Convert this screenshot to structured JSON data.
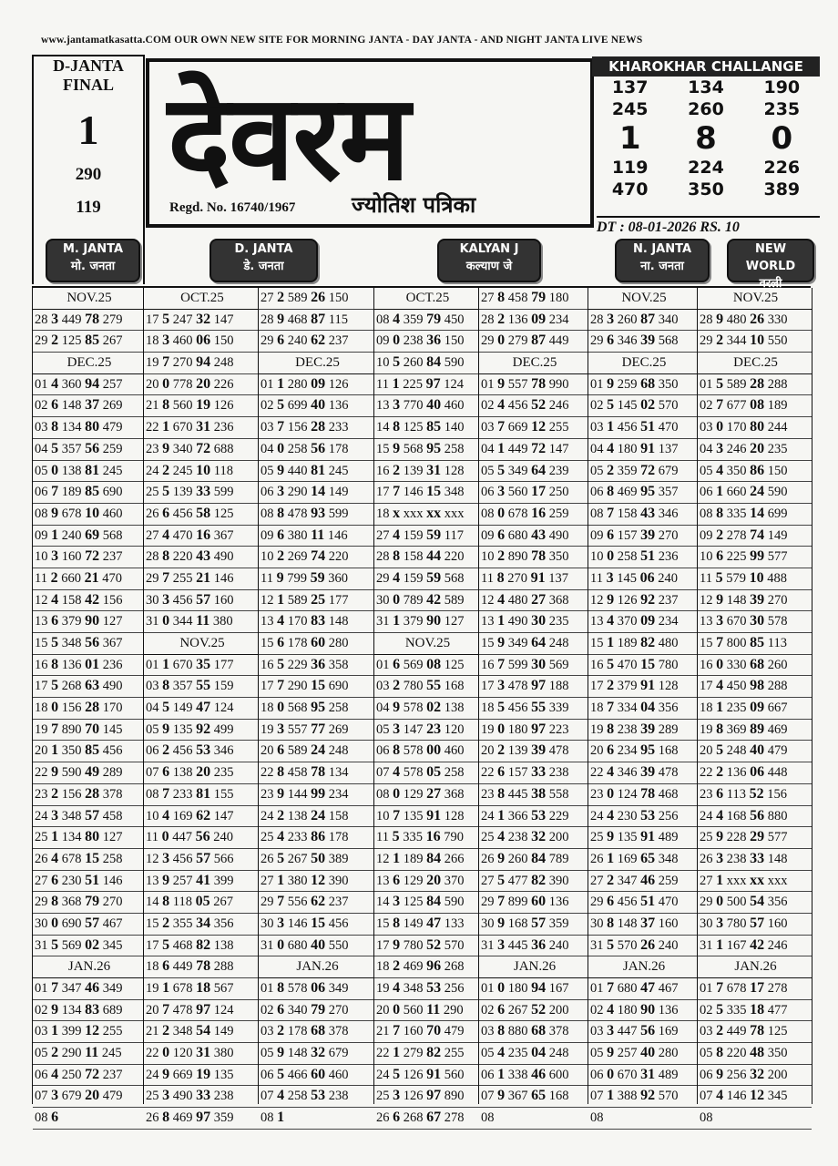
{
  "header": {
    "website": "www.jantamatkasatta.COM  OUR OWN NEW SITE FOR MORNING JANTA - DAY JANTA - AND NIGHT JANTA   LIVE NEWS"
  },
  "left_box": {
    "title": "D-JANTA",
    "subtitle": "FINAL",
    "digit": "1",
    "numbers": [
      "290",
      "119"
    ]
  },
  "masthead": {
    "title": "देवरम",
    "regd": "Regd. No. 16740/1967",
    "tagline": "ज्योतिश पत्रिका"
  },
  "challenge": {
    "title": "KHAROKHAR CHALLANGE",
    "rows": [
      [
        "137",
        "134",
        "190"
      ],
      [
        "245",
        "260",
        "235"
      ],
      [
        "1",
        "8",
        "0"
      ],
      [
        "119",
        "224",
        "226"
      ],
      [
        "470",
        "350",
        "389"
      ]
    ]
  },
  "date": "DT : 08-01-2026 RS. 10",
  "markets": [
    {
      "en": "M. JANTA",
      "hi": "मो. जनता"
    },
    {
      "en": "D. JANTA",
      "hi": "डे. जनता"
    },
    {
      "en": "KALYAN J",
      "hi": "कल्याण जे"
    },
    {
      "en": "N. JANTA",
      "hi": "ना. जनता"
    },
    {
      "en": "NEW WORLD",
      "hi": "वरली"
    }
  ],
  "columns": [
    [
      "NOV.25",
      "28 3 449 78 279",
      "29 2 125 85 267",
      "DEC.25",
      "01 4 360 94 257",
      "02 6 148 37 269",
      "03 8 134 80 479",
      "04 5 357 56 259",
      "05 0 138 81 245",
      "06 7 189 85 690",
      "08 9 678 10 460",
      "09 1 240 69 568",
      "10 3 160 72 237",
      "11 2 660 21 470",
      "12 4 158 42 156",
      "13 6 379 90 127",
      "15 5 348 56 367",
      "16 8 136 01 236",
      "17 5 268 63 490",
      "18 0 156 28 170",
      "19 7 890 70 145",
      "20 1 350 85 456",
      "22 9 590 49 289",
      "23 2 156 28 378",
      "24 3 348 57 458",
      "25 1 134 80 127",
      "26 4 678 15 258",
      "27 6 230 51 146",
      "29 8 368 79 270",
      "30 0 690 57 467",
      "31 5 569 02 345",
      "JAN.26",
      "01 7 347 46 349",
      "02 9 134 83 689",
      "03 1 399 12 255",
      "05 2 290 11 245",
      "06 4 250 72 237",
      "07 3 679 20 479",
      "08 6"
    ],
    [
      "OCT.25",
      "17 5 247 32 147",
      "18 3 460 06 150",
      "19 7 270 94 248",
      "20 0 778 20 226",
      "21 8 560 19 126",
      "22 1 670 31 236",
      "23 9 340 72 688",
      "24 2 245 10 118",
      "25 5 139 33 599",
      "26 6 456 58 125",
      "27 4 470 16 367",
      "28 8 220 43 490",
      "29 7 255 21 146",
      "30 3 456 57 160",
      "31 0 344 11 380",
      "NOV.25",
      "01 1 670 35 177",
      "03 8 357 55 159",
      "04 5 149 47 124",
      "05 9 135 92 499",
      "06 2 456 53 346",
      "07 6 138 20 235",
      "08 7 233 81 155",
      "10 4 169 62 147",
      "11 0 447 56 240",
      "12 3 456 57 566",
      "13 9 257 41 399",
      "14 8 118 05 267",
      "15 2 355 34 356",
      "17 5 468 82 138",
      "18 6 449 78 288",
      "19 1 678 18 567",
      "20 7 478 97 124",
      "21 2 348 54 149",
      "22 0 120 31 380",
      "24 9 669 19 135",
      "25 3 490 33 238",
      "26 8 469 97 359"
    ],
    [
      "27 2 589 26 150",
      "28 9 468 87 115",
      "29 6 240 62 237",
      "DEC.25",
      "01 1 280 09 126",
      "02 5 699 40 136",
      "03 7 156 28 233",
      "04 0 258 56 178",
      "05 9 440 81 245",
      "06 3 290 14 149",
      "08 8 478 93 599",
      "09 6 380 11 146",
      "10 2 269 74 220",
      "11 9 799 59 360",
      "12 1 589 25 177",
      "13 4 170 83 148",
      "15 6 178 60 280",
      "16 5 229 36 358",
      "17 7 290 15 690",
      "18 0 568 95 258",
      "19 3 557 77 269",
      "20 6 589 24 248",
      "22 8 458 78 134",
      "23 9 144 99 234",
      "24 2 138 24 158",
      "25 4 233 86 178",
      "26 5 267 50 389",
      "27 1 380 12 390",
      "29 7 556 62 237",
      "30 3 146 15 456",
      "31 0 680 40 550",
      "JAN.26",
      "01 8 578 06 349",
      "02 6 340 79 270",
      "03 2 178 68 378",
      "05 9 148 32 679",
      "06 5 466 60 460",
      "07 4 258 53 238",
      "08 1"
    ],
    [
      "OCT.25",
      "08 4 359 79 450",
      "09 0 238 36 150",
      "10 5 260 84 590",
      "11 1 225 97 124",
      "13 3 770 40 460",
      "14 8 125 85 140",
      "15 9 568 95 258",
      "16 2 139 31 128",
      "17 7 146 15 348",
      "18 x xxx xx xxx",
      "27 4 159 59 117",
      "28 8 158 44 220",
      "29 4 159 59 568",
      "30 0 789 42 589",
      "31 1 379 90 127",
      "NOV.25",
      "01 6 569 08 125",
      "03 2 780 55 168",
      "04 9 578 02 138",
      "05 3 147 23 120",
      "06 8 578 00 460",
      "07 4 578 05 258",
      "08 0 129 27 368",
      "10 7 135 91 128",
      "11 5 335 16 790",
      "12 1 189 84 266",
      "13 6 129 20 370",
      "14 3 125 84 590",
      "15 8 149 47 133",
      "17 9 780 52 570",
      "18 2 469 96 268",
      "19 4 348 53 256",
      "20 0 560 11 290",
      "21 7 160 70 479",
      "22 1 279 82 255",
      "24 5 126 91 560",
      "25 3 126 97 890",
      "26 6 268 67 278"
    ],
    [
      "27 8 458 79 180",
      "28 2 136 09 234",
      "29 0 279 87 449",
      "DEC.25",
      "01 9 557 78 990",
      "02 4 456 52 246",
      "03 7 669 12 255",
      "04 1 449 72 147",
      "05 5 349 64 239",
      "06 3 560 17 250",
      "08 0 678 16 259",
      "09 6 680 43 490",
      "10 2 890 78 350",
      "11 8 270 91 137",
      "12 4 480 27 368",
      "13 1 490 30 235",
      "15 9 349 64 248",
      "16 7 599 30 569",
      "17 3 478 97 188",
      "18 5 456 55 339",
      "19 0 180 97 223",
      "20 2 139 39 478",
      "22 6 157 33 238",
      "23 8 445 38 558",
      "24 1 366 53 229",
      "25 4 238 32 200",
      "26 9 260 84 789",
      "27 5 477 82 390",
      "29 7 899 60 136",
      "30 9 168 57 359",
      "31 3 445 36 240",
      "JAN.26",
      "01 0 180 94 167",
      "02 6 267 52 200",
      "03 8 880 68 378",
      "05 4 235 04 248",
      "06 1 338 46 600",
      "07 9 367 65 168",
      "08"
    ],
    [
      "NOV.25",
      "28 3 260 87 340",
      "29 6 346 39 568",
      "DEC.25",
      "01 9 259 68 350",
      "02 5 145 02 570",
      "03 1 456 51 470",
      "04 4 180 91 137",
      "05 2 359 72 679",
      "06 8 469 95 357",
      "08 7 158 43 346",
      "09 6 157 39 270",
      "10 0 258 51 236",
      "11 3 145 06 240",
      "12 9 126 92 237",
      "13 4 370 09 234",
      "15 1 189 82 480",
      "16 5 470 15 780",
      "17 2 379 91 128",
      "18 7 334 04 356",
      "19 8 238 39 289",
      "20 6 234 95 168",
      "22 4 346 39 478",
      "23 0 124 78 468",
      "24 4 230 53 256",
      "25 9 135 91 489",
      "26 1 169 65 348",
      "27 2 347 46 259",
      "29 6 456 51 470",
      "30 8 148 37 160",
      "31 5 570 26 240",
      "JAN.26",
      "01 7 680 47 467",
      "02 4 180 90 136",
      "03 3 447 56 169",
      "05 9 257 40 280",
      "06 0 670 31 489",
      "07 1 388 92 570",
      "08"
    ],
    [
      "NOV.25",
      "28 9 480 26 330",
      "29 2 344 10 550",
      "DEC.25",
      "01 5 589 28 288",
      "02 7 677 08 189",
      "03 0 170 80 244",
      "04 3 246 20 235",
      "05 4 350 86 150",
      "06 1 660 24 590",
      "08 8 335 14 699",
      "09 2 278 74 149",
      "10 6 225 99 577",
      "11 5 579 10 488",
      "12 9 148 39 270",
      "13 3 670 30 578",
      "15 7 800 85 113",
      "16 0 330 68 260",
      "17 4 450 98 288",
      "18 1 235 09 667",
      "19 8 369 89 469",
      "20 5 248 40 479",
      "22 2 136 06 448",
      "23 6 113 52 156",
      "24 4 168 56 880",
      "25 9 228 29 577",
      "26 3 238 33 148",
      "27 1 xxx xx xxx",
      "29 0 500 54 356",
      "30 3 780 57 160",
      "31 1 167 42 246",
      "JAN.26",
      "01 7 678 17 278",
      "02 5 335 18 477",
      "03 2 449 78 125",
      "05 8 220 48 350",
      "06 9 256 32 200",
      "07 4 146 12 345",
      "08"
    ]
  ]
}
